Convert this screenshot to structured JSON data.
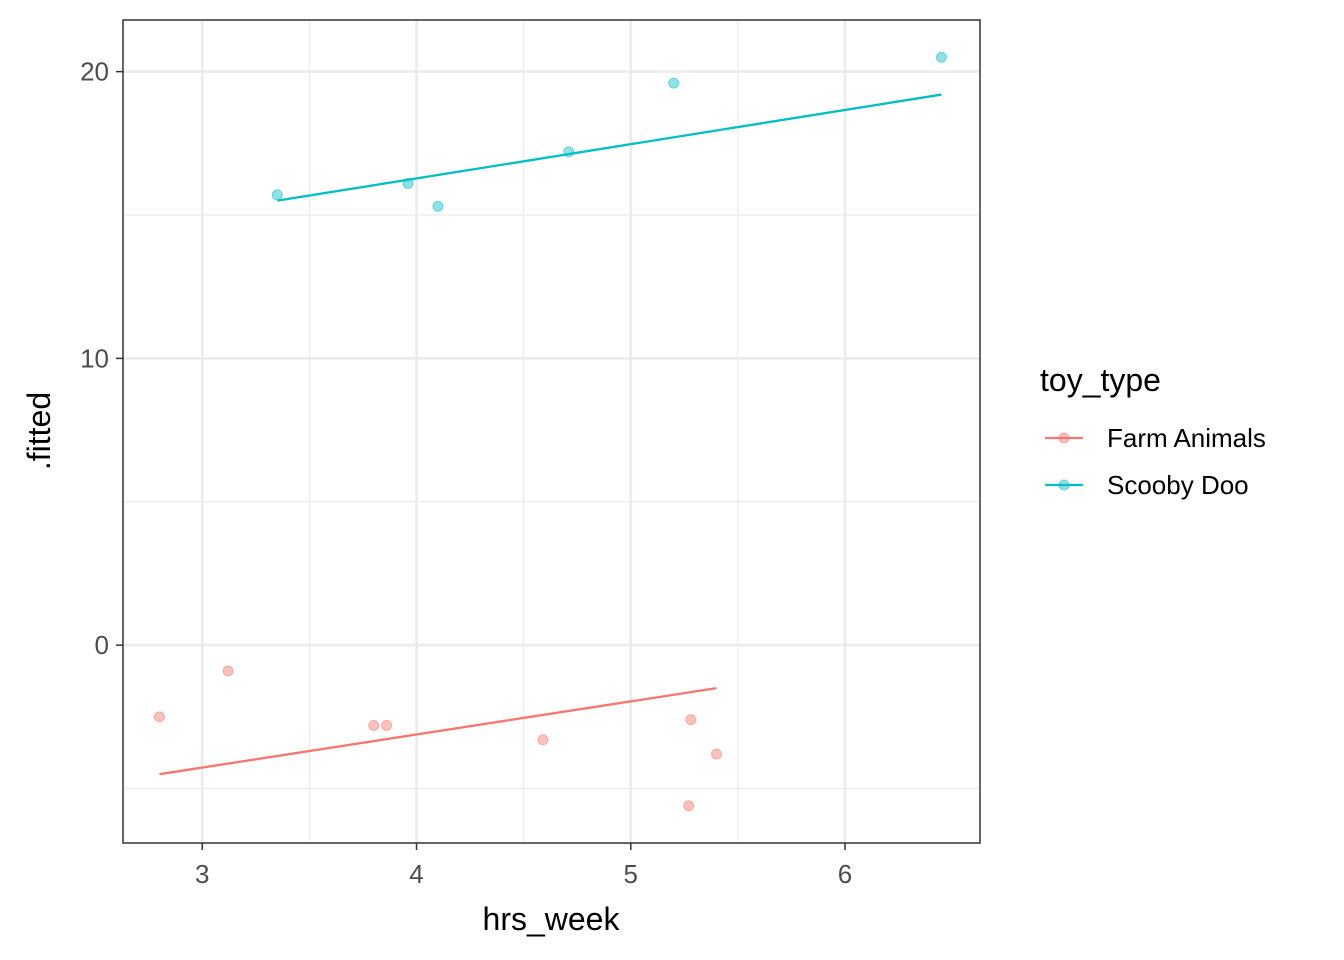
{
  "chart_data": {
    "type": "scatter",
    "xlabel": "hrs_week",
    "ylabel": ".fitted",
    "xlim": [
      2.63,
      6.63
    ],
    "ylim": [
      -6.9,
      21.8
    ],
    "x_ticks": [
      3,
      4,
      5,
      6
    ],
    "x_minor": [
      3.5,
      4.5,
      5.5
    ],
    "y_ticks": [
      0,
      10,
      20
    ],
    "y_minor": [
      -5,
      5,
      15
    ],
    "grid": true,
    "legend": {
      "title": "toy_type",
      "placement": "right"
    },
    "series": [
      {
        "name": "Farm Animals",
        "color": "#F8766D",
        "points": [
          {
            "x": 2.8,
            "y": -2.5
          },
          {
            "x": 3.12,
            "y": -0.9
          },
          {
            "x": 3.8,
            "y": -2.8
          },
          {
            "x": 3.86,
            "y": -2.8
          },
          {
            "x": 4.59,
            "y": -3.3
          },
          {
            "x": 5.27,
            "y": -5.6
          },
          {
            "x": 5.28,
            "y": -2.6
          },
          {
            "x": 5.4,
            "y": -3.8
          }
        ],
        "line": [
          {
            "x": 2.8,
            "y": -4.5
          },
          {
            "x": 5.4,
            "y": -1.5
          }
        ]
      },
      {
        "name": "Scooby Doo",
        "color": "#00BFC4",
        "points": [
          {
            "x": 3.35,
            "y": 15.7
          },
          {
            "x": 3.96,
            "y": 16.1
          },
          {
            "x": 4.1,
            "y": 15.3
          },
          {
            "x": 4.71,
            "y": 17.2
          },
          {
            "x": 5.2,
            "y": 19.6
          },
          {
            "x": 6.45,
            "y": 20.5
          }
        ],
        "line": [
          {
            "x": 3.35,
            "y": 15.5
          },
          {
            "x": 6.45,
            "y": 19.2
          }
        ]
      }
    ]
  }
}
